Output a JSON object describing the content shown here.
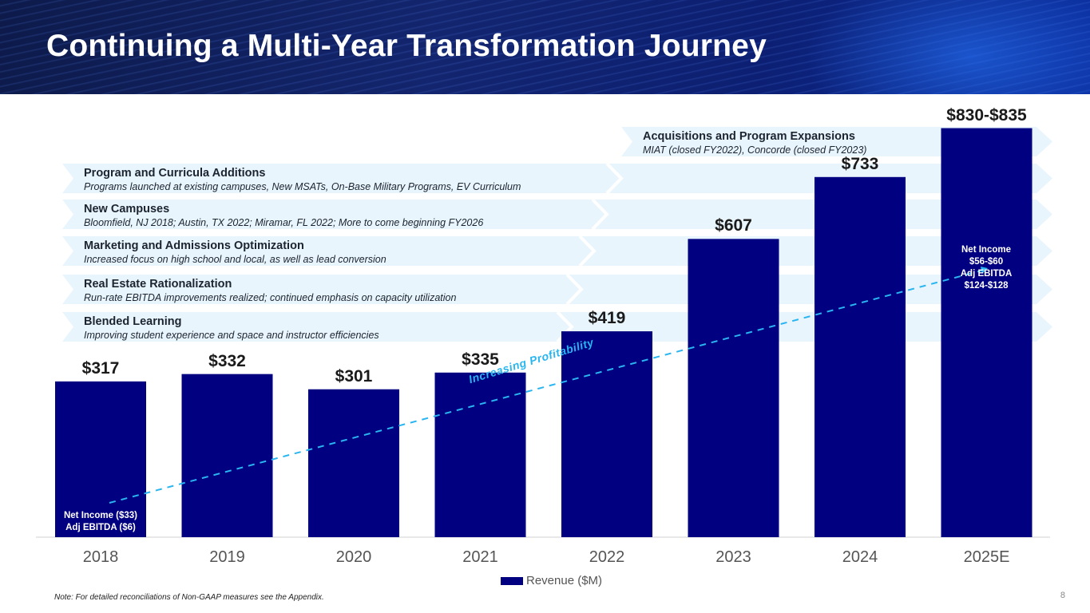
{
  "slide": {
    "title": "Continuing a Multi-Year Transformation Journey",
    "footnote": "Note: For detailed reconciliations of Non-GAAP measures see the Appendix.",
    "page_number": "8"
  },
  "banners": [
    {
      "title": "Acquisitions and Program Expansions",
      "subtitle": "MIAT (closed FY2022), Concorde (closed FY2023)"
    },
    {
      "title": "Program and Curricula Additions",
      "subtitle": "Programs launched at existing campuses, New MSATs, On-Base Military Programs, EV Curriculum"
    },
    {
      "title": "New Campuses",
      "subtitle": "Bloomfield, NJ 2018; Austin, TX 2022; Miramar, FL 2022; More to come beginning FY2026"
    },
    {
      "title": "Marketing and Admissions Optimization",
      "subtitle": "Increased focus on high school and local, as well as lead conversion"
    },
    {
      "title": "Real Estate Rationalization",
      "subtitle": "Run-rate EBITDA improvements realized; continued emphasis on capacity utilization"
    },
    {
      "title": "Blended Learning",
      "subtitle": "Improving student experience and space and instructor efficiencies"
    }
  ],
  "annotations": {
    "trend_label": "Increasing Profitability",
    "bar_2018": [
      "Net Income ($33)",
      "Adj EBITDA ($6)"
    ],
    "bar_2025": [
      "Net Income",
      "$56-$60",
      "Adj EBITDA",
      "$124-$128"
    ]
  },
  "chart_data": {
    "type": "bar",
    "title": "",
    "categories": [
      "2018",
      "2019",
      "2020",
      "2021",
      "2022",
      "2023",
      "2024",
      "2025E"
    ],
    "series": [
      {
        "name": "Revenue ($M)",
        "values": [
          317,
          332,
          301,
          335,
          419,
          607,
          733,
          832.5
        ]
      }
    ],
    "data_labels": [
      "$317",
      "$332",
      "$301",
      "$335",
      "$419",
      "$607",
      "$733",
      "$830-$835"
    ],
    "xlabel": "",
    "ylabel": "",
    "ylim": [
      0,
      900
    ],
    "grid": false,
    "legend": "bottom-center",
    "bar_color": "#000080",
    "trend_color": "#29b5f0"
  }
}
